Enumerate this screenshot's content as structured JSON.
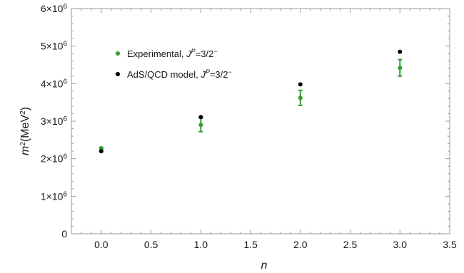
{
  "chart_data": {
    "type": "scatter",
    "title": "",
    "xlabel": "n",
    "ylabel_parts": {
      "m": "m",
      "m_sup": "2",
      "open": "(MeV",
      "unit_sup": "2",
      "close": ")"
    },
    "xlim": [
      -0.3,
      3.5
    ],
    "ylim": [
      0,
      6000000
    ],
    "x_ticks": [
      "0.0",
      "0.5",
      "1.0",
      "1.5",
      "2.0",
      "2.5",
      "3.0",
      "3.5"
    ],
    "y_ticks": [
      {
        "value": 0,
        "label": "0",
        "base": "",
        "exp": ""
      },
      {
        "value": 1000000,
        "label": "",
        "base": "1×10",
        "exp": "6"
      },
      {
        "value": 2000000,
        "label": "",
        "base": "2×10",
        "exp": "6"
      },
      {
        "value": 3000000,
        "label": "",
        "base": "3×10",
        "exp": "6"
      },
      {
        "value": 4000000,
        "label": "",
        "base": "4×10",
        "exp": "6"
      },
      {
        "value": 5000000,
        "label": "",
        "base": "5×10",
        "exp": "6"
      },
      {
        "value": 6000000,
        "label": "",
        "base": "6×10",
        "exp": "6"
      }
    ],
    "grid": false,
    "legend_position": "top-left",
    "series": [
      {
        "legend": {
          "prefix": "Experimental, ",
          "j": "J",
          "p": "P",
          "eq": "=3/2",
          "minus": "−"
        },
        "color": "#2e9e2e",
        "x": [
          0,
          1,
          2,
          3
        ],
        "y": [
          2280000,
          2900000,
          3620000,
          4420000
        ],
        "err": [
          20000,
          180000,
          200000,
          220000
        ]
      },
      {
        "legend": {
          "prefix": "AdS/QCD model, ",
          "j": "J",
          "p": "P",
          "eq": "=3/2",
          "minus": "−"
        },
        "color": "#000000",
        "x": [
          0,
          1,
          2,
          3
        ],
        "y": [
          2200000,
          3110000,
          3980000,
          4850000
        ]
      }
    ]
  }
}
